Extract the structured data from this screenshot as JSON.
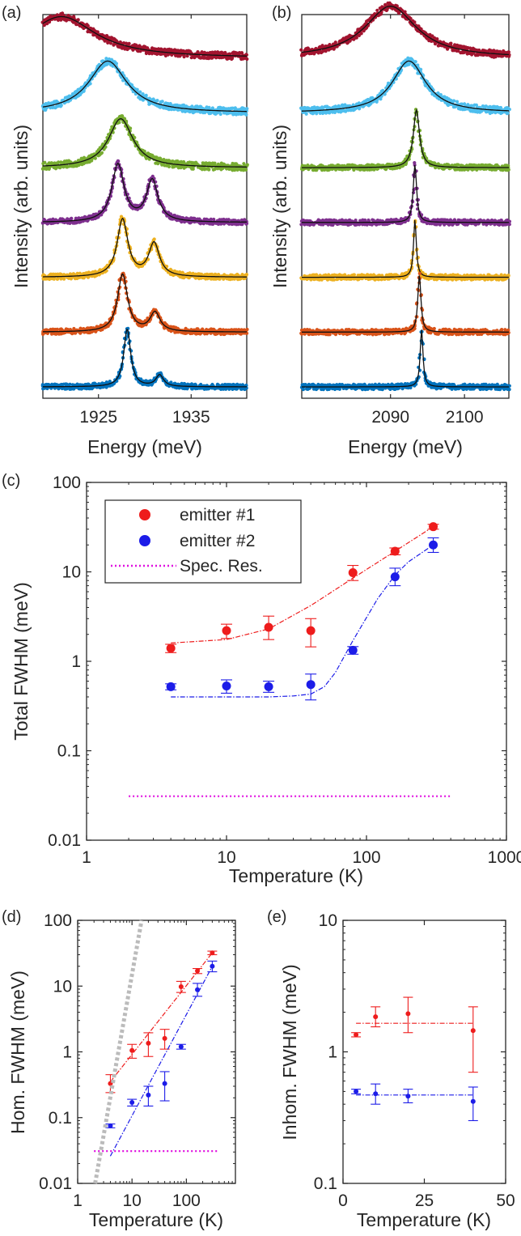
{
  "chart_data": [
    {
      "panel": "(a)",
      "type": "scatter",
      "xlabel": "Energy (meV)",
      "ylabel": "Intensity (arb. units)",
      "xlim": [
        1919,
        1941
      ],
      "xticks": [
        1925,
        1935
      ],
      "yticks": "none",
      "series": [
        {
          "color": "#A2142F",
          "kind": "broad",
          "baseline": 0.0,
          "peaks": [
            {
              "x": 1921,
              "amp": 0.72,
              "w": 9.0
            }
          ],
          "slope": -0.01
        },
        {
          "color": "#4DBEEE",
          "kind": "broad",
          "baseline": 0.0,
          "peaks": [
            {
              "x": 1926,
              "amp": 0.9,
              "w": 5.0
            }
          ]
        },
        {
          "color": "#77AC30",
          "kind": "broad",
          "baseline": 0.0,
          "peaks": [
            {
              "x": 1927.4,
              "amp": 0.85,
              "w": 3.2
            }
          ]
        },
        {
          "color": "#7E2F8E",
          "kind": "doublet",
          "baseline": 0.0,
          "peaks": [
            {
              "x": 1927.1,
              "amp": 1.0,
              "w": 1.6
            },
            {
              "x": 1930.8,
              "amp": 0.72,
              "w": 1.5
            }
          ]
        },
        {
          "color": "#EDB120",
          "kind": "doublet",
          "baseline": 0.0,
          "peaks": [
            {
              "x": 1927.6,
              "amp": 1.0,
              "w": 1.4
            },
            {
              "x": 1931.0,
              "amp": 0.58,
              "w": 1.4
            }
          ]
        },
        {
          "color": "#D95319",
          "kind": "doublet",
          "baseline": 0.0,
          "peaks": [
            {
              "x": 1927.6,
              "amp": 1.0,
              "w": 1.3
            },
            {
              "x": 1931.1,
              "amp": 0.33,
              "w": 1.3
            }
          ]
        },
        {
          "color": "#0072BD",
          "kind": "doublet",
          "baseline": 0.0,
          "peaks": [
            {
              "x": 1928.1,
              "amp": 1.0,
              "w": 0.9
            },
            {
              "x": 1931.6,
              "amp": 0.2,
              "w": 1.0
            }
          ]
        }
      ]
    },
    {
      "panel": "(b)",
      "type": "scatter",
      "xlabel": "Energy (meV)",
      "ylabel": "Intensity (arb. units)",
      "xlim": [
        2078,
        2106
      ],
      "xticks": [
        2090,
        2100
      ],
      "yticks": "none",
      "series": [
        {
          "color": "#A2142F",
          "kind": "broad",
          "baseline": 0.0,
          "peaks": [
            {
              "x": 2090,
              "amp": 0.9,
              "w": 8.5
            }
          ]
        },
        {
          "color": "#4DBEEE",
          "kind": "broad",
          "baseline": 0.0,
          "peaks": [
            {
              "x": 2092.5,
              "amp": 0.9,
              "w": 5.5
            }
          ]
        },
        {
          "color": "#77AC30",
          "kind": "sharp",
          "baseline": 0.0,
          "peaks": [
            {
              "x": 2093.5,
              "amp": 1.0,
              "w": 1.0
            }
          ]
        },
        {
          "color": "#7E2F8E",
          "kind": "sharp",
          "baseline": 0.0,
          "peaks": [
            {
              "x": 2093.3,
              "amp": 1.0,
              "w": 0.55
            }
          ]
        },
        {
          "color": "#EDB120",
          "kind": "sharp",
          "baseline": 0.0,
          "peaks": [
            {
              "x": 2093.3,
              "amp": 1.0,
              "w": 0.45
            }
          ]
        },
        {
          "color": "#D95319",
          "kind": "sharp",
          "baseline": 0.0,
          "peaks": [
            {
              "x": 2093.9,
              "amp": 1.0,
              "w": 0.5
            }
          ]
        },
        {
          "color": "#0072BD",
          "kind": "sharp",
          "baseline": 0.0,
          "peaks": [
            {
              "x": 2094.2,
              "amp": 1.0,
              "w": 0.45
            }
          ]
        }
      ]
    },
    {
      "panel": "(c)",
      "type": "scatter",
      "xlabel": "Temperature (K)",
      "ylabel": "Total FWHM (meV)",
      "xscale": "log",
      "yscale": "log",
      "xlim": [
        1,
        1000
      ],
      "ylim": [
        0.01,
        100
      ],
      "xticks": [
        1,
        10,
        100,
        1000
      ],
      "xticklabels": [
        "1",
        "10",
        "100",
        "1000"
      ],
      "yticks": [
        0.01,
        0.1,
        1,
        10,
        100
      ],
      "yticklabels": [
        "0.01",
        "0.1",
        "1",
        "10",
        "100"
      ],
      "legend": {
        "position": "top-left",
        "entries": [
          "emitter #1",
          "emitter #2",
          "Spec. Res."
        ]
      },
      "series": [
        {
          "name": "emitter #1",
          "color": "#ee1c1c",
          "x": [
            4,
            10,
            20,
            40,
            80,
            160,
            300
          ],
          "y": [
            1.4,
            2.2,
            2.4,
            2.2,
            9.8,
            17,
            32
          ],
          "err_lo": [
            1.25,
            1.8,
            1.75,
            1.45,
            8.0,
            15.5,
            30
          ],
          "err_hi": [
            1.55,
            2.6,
            3.2,
            3.0,
            11.8,
            18.5,
            34
          ],
          "fit_x": [
            4,
            10,
            20,
            40,
            80,
            160,
            300
          ],
          "fit_y": [
            1.6,
            1.75,
            2.3,
            4.2,
            8.5,
            17,
            32
          ]
        },
        {
          "name": "emitter #2",
          "color": "#1c1ce8",
          "x": [
            4,
            10,
            20,
            40,
            80,
            160,
            300
          ],
          "y": [
            0.52,
            0.53,
            0.52,
            0.55,
            1.33,
            8.8,
            20
          ],
          "err_lo": [
            0.48,
            0.44,
            0.45,
            0.37,
            1.2,
            7.0,
            16.5
          ],
          "err_hi": [
            0.56,
            0.62,
            0.6,
            0.72,
            1.46,
            11,
            24
          ],
          "fit_x": [
            4,
            10,
            20,
            30,
            40,
            50,
            60,
            80,
            120,
            160,
            200,
            300
          ],
          "fit_y": [
            0.4,
            0.4,
            0.4,
            0.41,
            0.43,
            0.52,
            0.75,
            1.7,
            5.0,
            9.2,
            13,
            20
          ]
        },
        {
          "name": "Spec. Res.",
          "color": "#e010e0",
          "style": "dotted",
          "x": [
            2,
            400
          ],
          "y": [
            0.031,
            0.031
          ]
        }
      ]
    },
    {
      "panel": "(d)",
      "type": "scatter",
      "xlabel": "Temperature (K)",
      "ylabel": "Hom. FWHM (meV)",
      "xscale": "log",
      "yscale": "log",
      "xlim": [
        1,
        800
      ],
      "ylim": [
        0.01,
        100
      ],
      "xticks": [
        1,
        10,
        100
      ],
      "xticklabels": [
        "1",
        "10",
        "100"
      ],
      "yticks": [
        0.01,
        0.1,
        1,
        10,
        100
      ],
      "yticklabels": [
        "0.01",
        "0.1",
        "1",
        "10",
        "100"
      ],
      "series": [
        {
          "color": "#ee1c1c",
          "x": [
            4,
            10,
            20,
            40,
            80,
            160,
            300
          ],
          "y": [
            0.33,
            1.05,
            1.35,
            1.6,
            9.8,
            17,
            32
          ],
          "err_lo": [
            0.24,
            0.8,
            0.85,
            1.1,
            8.0,
            15.5,
            30
          ],
          "err_hi": [
            0.45,
            1.3,
            1.95,
            2.2,
            11.8,
            18.5,
            34
          ],
          "fit_x": [
            4,
            300
          ],
          "fit_y": [
            0.35,
            32
          ]
        },
        {
          "color": "#1c1ce8",
          "x": [
            4,
            10,
            20,
            40,
            80,
            160,
            300
          ],
          "y": [
            0.075,
            0.17,
            0.22,
            0.33,
            1.2,
            8.8,
            20
          ],
          "err_lo": [
            0.07,
            0.15,
            0.15,
            0.18,
            1.1,
            7.0,
            16.5
          ],
          "err_hi": [
            0.08,
            0.19,
            0.3,
            0.5,
            1.3,
            11,
            24
          ],
          "fit_x": [
            4,
            300
          ],
          "fit_y": [
            0.026,
            20
          ]
        },
        {
          "color": "#bbbbbb",
          "style": "dotted-thick",
          "x": [
            2.1,
            15
          ],
          "y": [
            0.01,
            100
          ]
        },
        {
          "color": "#e010e0",
          "style": "dotted",
          "x": [
            2,
            400
          ],
          "y": [
            0.031,
            0.031
          ]
        }
      ]
    },
    {
      "panel": "(e)",
      "type": "scatter",
      "xlabel": "Temperature (K)",
      "ylabel": "Inhom. FWHM (meV)",
      "yscale": "log",
      "xlim": [
        0,
        50
      ],
      "ylim": [
        0.1,
        10
      ],
      "xticks": [
        0,
        25,
        50
      ],
      "xticklabels": [
        "0",
        "25",
        "50"
      ],
      "yticks": [
        0.1,
        1,
        10
      ],
      "yticklabels": [
        "0.1",
        "1",
        "10"
      ],
      "series": [
        {
          "color": "#ee1c1c",
          "x": [
            4,
            10,
            20,
            40
          ],
          "y": [
            1.35,
            1.85,
            1.95,
            1.45
          ],
          "err_lo": [
            1.3,
            1.55,
            1.4,
            0.7
          ],
          "err_hi": [
            1.4,
            2.2,
            2.6,
            2.2
          ],
          "fit_x": [
            4,
            40
          ],
          "fit_y": [
            1.65,
            1.65
          ]
        },
        {
          "color": "#1c1ce8",
          "x": [
            4,
            10,
            20,
            40
          ],
          "y": [
            0.5,
            0.48,
            0.46,
            0.42
          ],
          "err_lo": [
            0.48,
            0.4,
            0.41,
            0.3
          ],
          "err_hi": [
            0.52,
            0.57,
            0.52,
            0.54
          ],
          "fit_x": [
            4,
            40
          ],
          "fit_y": [
            0.47,
            0.47
          ]
        }
      ]
    }
  ]
}
